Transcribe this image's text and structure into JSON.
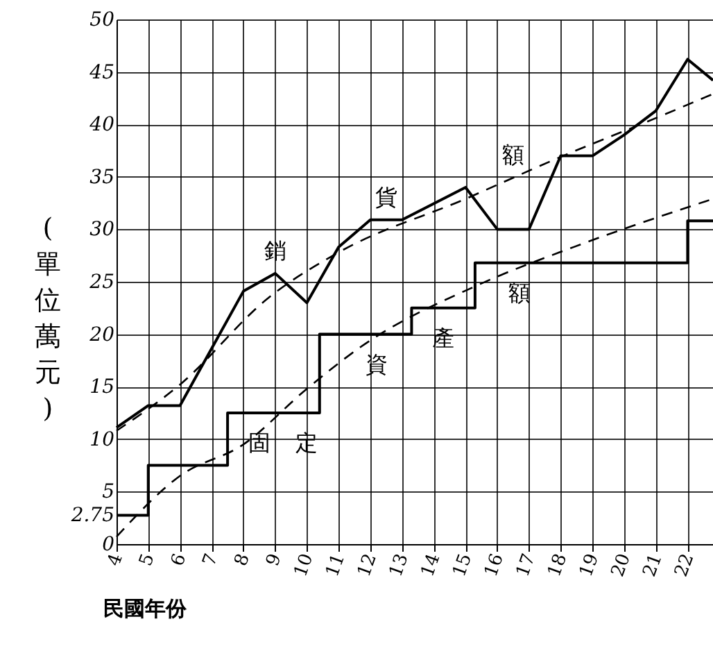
{
  "chart_data": {
    "type": "line",
    "xlabel": "民國年份",
    "ylabel": "(單位萬元)",
    "xlim": [
      4,
      22.8
    ],
    "xticks": [
      4,
      5,
      6,
      7,
      8,
      9,
      10,
      11,
      12,
      13,
      14,
      15,
      16,
      17,
      18,
      19,
      20,
      21,
      22
    ],
    "ylim": [
      0,
      50
    ],
    "yticks": [
      0,
      {
        "value": 2.75,
        "label": "2.75"
      },
      5,
      10,
      15,
      20,
      25,
      30,
      35,
      40,
      45,
      50
    ],
    "grid": true,
    "marker": "none",
    "series": [
      {
        "type": "line",
        "color": "#000000",
        "line_style": "solid",
        "x": [
          4,
          5,
          6,
          8,
          9,
          10,
          11,
          12,
          13,
          15,
          16,
          17,
          18,
          19,
          20,
          21,
          22,
          22.8
        ],
        "values": [
          11.1,
          13.2,
          13.2,
          24.1,
          25.8,
          23.0,
          28.3,
          30.9,
          30.9,
          34.0,
          30.0,
          30.0,
          37.0,
          37.0,
          39.0,
          41.3,
          46.2,
          44.2
        ]
      },
      {
        "type": "step",
        "color": "#000000",
        "line_style": "solid",
        "x": [
          4,
          5,
          7.5,
          10.4,
          13.3,
          15.3,
          22,
          22.8
        ],
        "values": [
          2.75,
          7.5,
          12.5,
          20,
          22.5,
          26.8,
          30.8,
          30.8
        ]
      },
      {
        "type": "line",
        "color": "#000000",
        "line_style": "dashed",
        "x": [
          4,
          6,
          8.8,
          11,
          15,
          18,
          21,
          22.8
        ],
        "values": [
          10.8,
          15.2,
          23.5,
          27.8,
          32.9,
          36.9,
          40.6,
          42.9
        ]
      },
      {
        "type": "line",
        "color": "#000000",
        "line_style": "dashed",
        "x": [
          4,
          6,
          8,
          10,
          11.7,
          15.4,
          18.4,
          22.8
        ],
        "values": [
          0.7,
          6.5,
          9.5,
          14.8,
          18.8,
          24.7,
          28.3,
          32.9
        ]
      }
    ],
    "annotations": [
      {
        "text": "銷",
        "x": 9,
        "y": 25.8
      },
      {
        "text": "貨",
        "x": 12.5,
        "y": 30.9
      },
      {
        "text": "額",
        "x": 16.5,
        "y": 34.9
      },
      {
        "text": "固",
        "x": 8.5,
        "y": 12.5
      },
      {
        "text": "定",
        "x": 10,
        "y": 12.5
      },
      {
        "text": "資",
        "x": 12.2,
        "y": 20
      },
      {
        "text": "產",
        "x": 14.3,
        "y": 22.5
      },
      {
        "text": "額",
        "x": 16.7,
        "y": 26.8
      }
    ]
  }
}
